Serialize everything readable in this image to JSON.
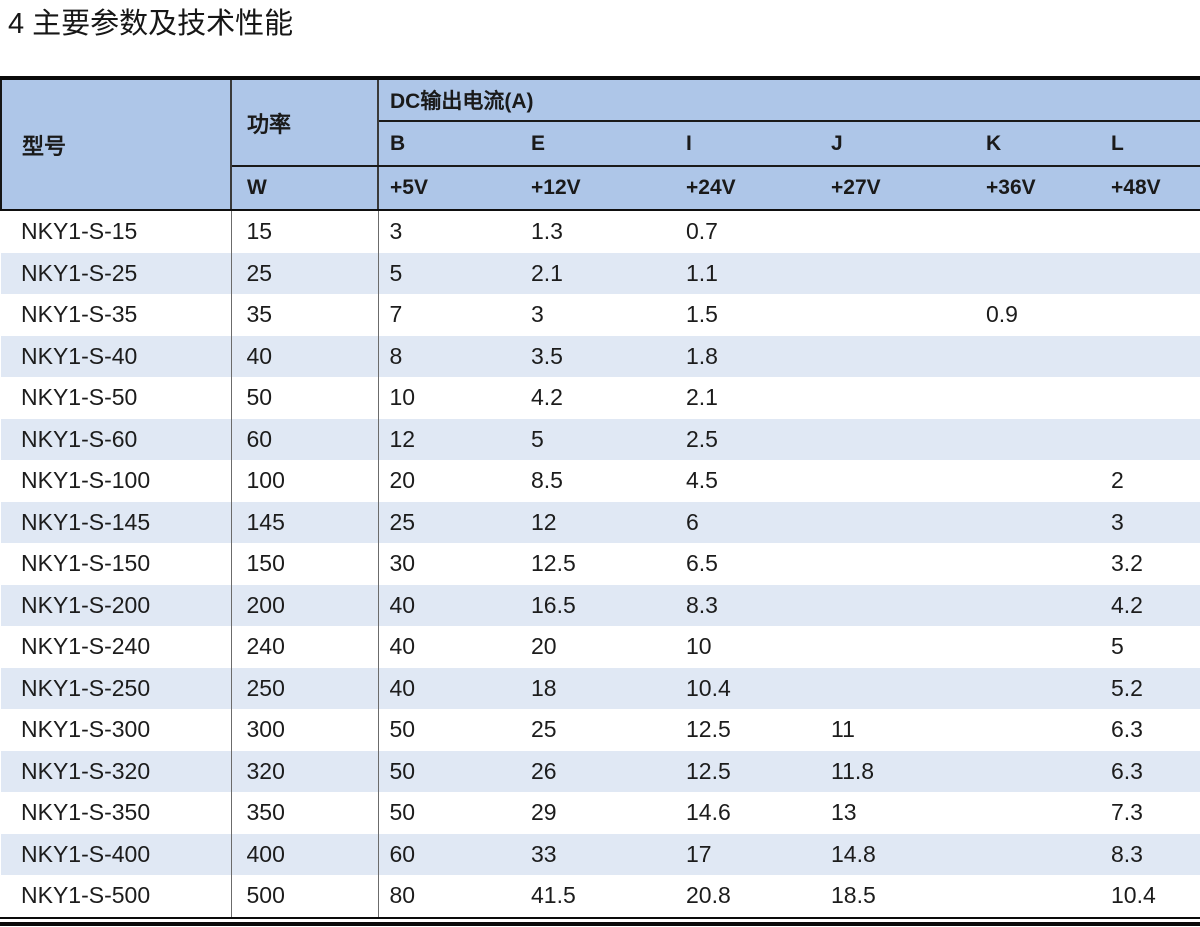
{
  "title": "4 主要参数及技术性能",
  "colors": {
    "header_bg": "#aec6e8",
    "stripe_bg": "#e0e8f4",
    "text": "#1a1a1a"
  },
  "table": {
    "header": {
      "model": "型号",
      "power": "功率",
      "power_unit": "W",
      "dc_group": "DC输出电流(A)",
      "channels": [
        "B",
        "E",
        "I",
        "J",
        "K",
        "L"
      ],
      "voltages": [
        "+5V",
        "+12V",
        "+24V",
        "+27V",
        "+36V",
        "+48V"
      ]
    },
    "columns": [
      "model",
      "power",
      "b",
      "e",
      "i",
      "j",
      "k",
      "l"
    ],
    "rows": [
      [
        "NKY1-S-15",
        "15",
        "3",
        "1.3",
        "0.7",
        "",
        "",
        ""
      ],
      [
        "NKY1-S-25",
        "25",
        "5",
        "2.1",
        "1.1",
        "",
        "",
        ""
      ],
      [
        "NKY1-S-35",
        "35",
        "7",
        "3",
        "1.5",
        "",
        "0.9",
        ""
      ],
      [
        "NKY1-S-40",
        "40",
        "8",
        "3.5",
        "1.8",
        "",
        "",
        ""
      ],
      [
        "NKY1-S-50",
        "50",
        "10",
        "4.2",
        "2.1",
        "",
        "",
        ""
      ],
      [
        "NKY1-S-60",
        "60",
        "12",
        "5",
        "2.5",
        "",
        "",
        ""
      ],
      [
        "NKY1-S-100",
        "100",
        "20",
        "8.5",
        "4.5",
        "",
        "",
        "2"
      ],
      [
        "NKY1-S-145",
        "145",
        "25",
        "12",
        "6",
        "",
        "",
        "3"
      ],
      [
        "NKY1-S-150",
        "150",
        "30",
        "12.5",
        "6.5",
        "",
        "",
        "3.2"
      ],
      [
        "NKY1-S-200",
        "200",
        "40",
        "16.5",
        "8.3",
        "",
        "",
        "4.2"
      ],
      [
        "NKY1-S-240",
        "240",
        "40",
        "20",
        "10",
        "",
        "",
        "5"
      ],
      [
        "NKY1-S-250",
        "250",
        "40",
        "18",
        "10.4",
        "",
        "",
        "5.2"
      ],
      [
        "NKY1-S-300",
        "300",
        "50",
        "25",
        "12.5",
        "11",
        "",
        "6.3"
      ],
      [
        "NKY1-S-320",
        "320",
        "50",
        "26",
        "12.5",
        "11.8",
        "",
        "6.3"
      ],
      [
        "NKY1-S-350",
        "350",
        "50",
        "29",
        "14.6",
        "13",
        "",
        "7.3"
      ],
      [
        "NKY1-S-400",
        "400",
        "60",
        "33",
        "17",
        "14.8",
        "",
        "8.3"
      ],
      [
        "NKY1-S-500",
        "500",
        "80",
        "41.5",
        "20.8",
        "18.5",
        "",
        "10.4"
      ]
    ]
  }
}
